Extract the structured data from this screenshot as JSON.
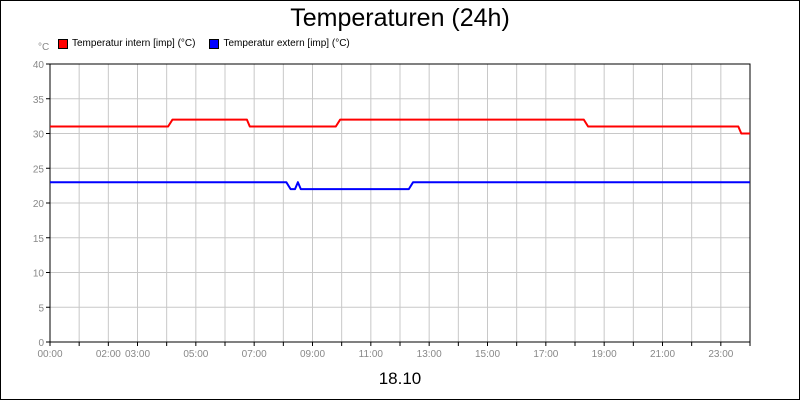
{
  "chart_data": {
    "type": "line",
    "title": "Temperaturen (24h)",
    "ylabel": "°C",
    "xlabel": "18.10",
    "ylim": [
      0,
      40
    ],
    "xlim_hours": [
      0,
      24
    ],
    "y_ticks": [
      0,
      5,
      10,
      15,
      20,
      25,
      30,
      35,
      40
    ],
    "x_ticks": [
      {
        "hour": 0,
        "label": "00:00"
      },
      {
        "hour": 2,
        "label": "02:00"
      },
      {
        "hour": 3,
        "label": "03:00"
      },
      {
        "hour": 5,
        "label": "05:00"
      },
      {
        "hour": 7,
        "label": "07:00"
      },
      {
        "hour": 9,
        "label": "09:00"
      },
      {
        "hour": 11,
        "label": "11:00"
      },
      {
        "hour": 13,
        "label": "13:00"
      },
      {
        "hour": 15,
        "label": "15:00"
      },
      {
        "hour": 17,
        "label": "17:00"
      },
      {
        "hour": 19,
        "label": "19:00"
      },
      {
        "hour": 21,
        "label": "21:00"
      },
      {
        "hour": 23,
        "label": "23:00"
      }
    ],
    "grid": true,
    "legend_position": "top-left",
    "series": [
      {
        "name": "Temperatur intern [imp] (°C)",
        "color": "#ff0000",
        "points": [
          [
            0,
            31
          ],
          [
            4.05,
            31
          ],
          [
            4.2,
            32
          ],
          [
            6.75,
            32
          ],
          [
            6.85,
            31
          ],
          [
            9.8,
            31
          ],
          [
            9.95,
            32
          ],
          [
            18.3,
            32
          ],
          [
            18.45,
            31
          ],
          [
            23.6,
            31
          ],
          [
            23.7,
            30
          ],
          [
            24,
            30
          ]
        ]
      },
      {
        "name": "Temperatur extern [imp] (°C)",
        "color": "#0000ff",
        "points": [
          [
            0,
            23
          ],
          [
            8.1,
            23
          ],
          [
            8.25,
            22
          ],
          [
            8.4,
            22
          ],
          [
            8.5,
            23
          ],
          [
            8.6,
            22
          ],
          [
            12.3,
            22
          ],
          [
            12.45,
            23
          ],
          [
            24,
            23
          ]
        ]
      }
    ]
  }
}
